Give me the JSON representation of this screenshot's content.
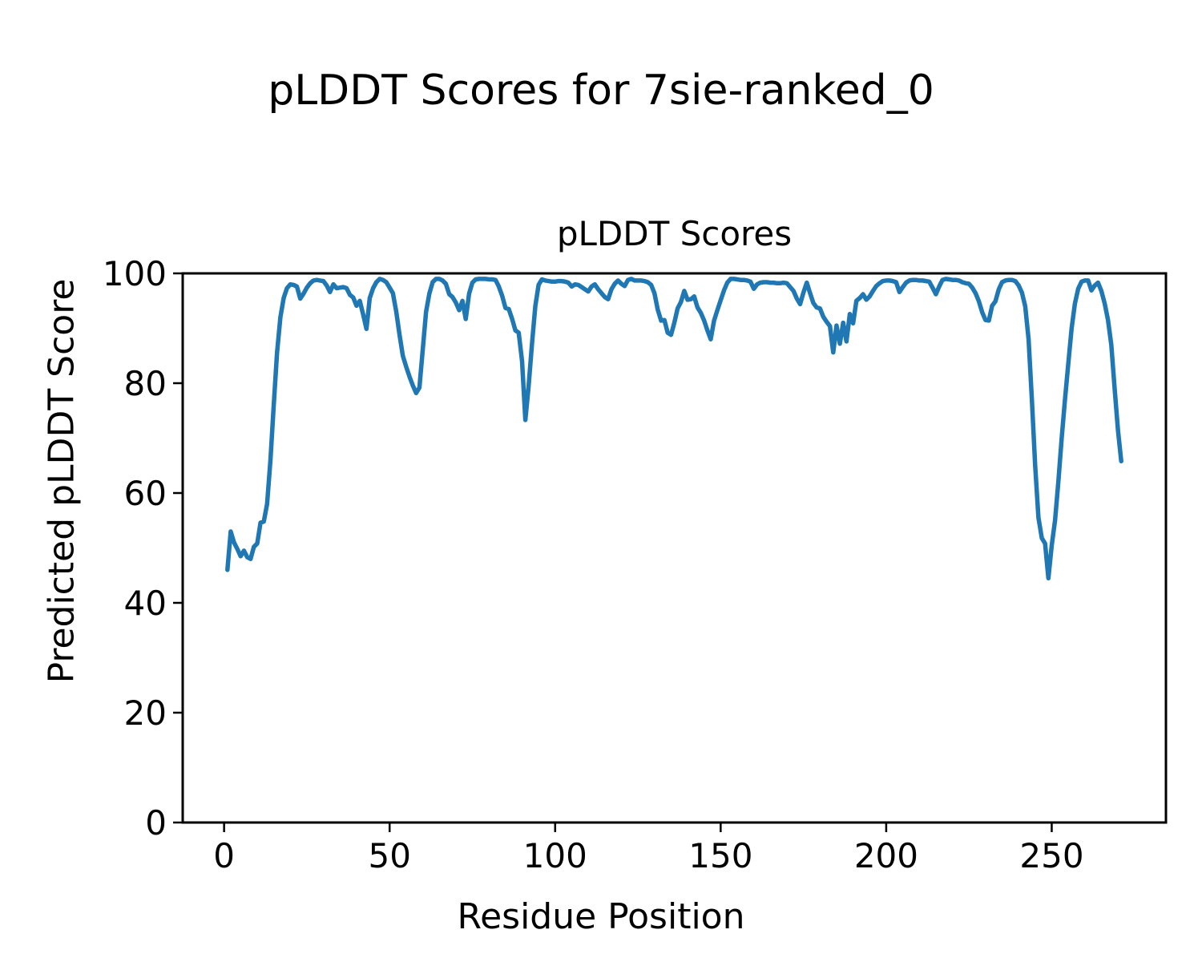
{
  "figure": {
    "suptitle": "pLDDT Scores for 7sie-ranked_0",
    "background_color": "#ffffff",
    "text_color": "#000000"
  },
  "axes": {
    "title": "pLDDT Scores",
    "xlabel": "Residue Position",
    "ylabel": "Predicted pLDDT Score"
  },
  "chart_data": {
    "type": "line",
    "title": "pLDDT Scores",
    "xlabel": "Residue Position",
    "ylabel": "Predicted pLDDT Score",
    "line_color": "#1f77b4",
    "axis_color": "#000000",
    "grid": false,
    "legend": null,
    "xlim": [
      -12.5,
      284.5
    ],
    "ylim": [
      0,
      100
    ],
    "xticks": [
      0,
      50,
      100,
      150,
      200,
      250
    ],
    "yticks": [
      0,
      20,
      40,
      60,
      80,
      100
    ],
    "x_start": 1,
    "x_step": 1,
    "series": [
      {
        "name": "pLDDT",
        "values": [
          46,
          53,
          51,
          49.8,
          48.5,
          49.5,
          48.3,
          48,
          50.2,
          50.8,
          54.6,
          54.8,
          58,
          66,
          76,
          85.5,
          92,
          95.5,
          97.3,
          98,
          97.9,
          97.6,
          95.4,
          96.3,
          97.4,
          98.2,
          98.7,
          98.8,
          98.7,
          98.6,
          97.8,
          96.6,
          98,
          97.3,
          97.4,
          97.5,
          97.3,
          96.1,
          95.6,
          94.1,
          95,
          92.5,
          89.9,
          95.5,
          97.3,
          98.4,
          99,
          98.8,
          98.4,
          97.4,
          96.4,
          93,
          88.8,
          85,
          83,
          81.2,
          79.6,
          78.2,
          79.2,
          86,
          93,
          96.3,
          98.4,
          99,
          99,
          98.7,
          98.1,
          96.2,
          95.7,
          94.7,
          93.3,
          95,
          91.7,
          96.3,
          98.3,
          98.9,
          99,
          99,
          99,
          98.9,
          98.9,
          98.8,
          97.6,
          95.9,
          93.7,
          93.5,
          91.7,
          89.6,
          89.2,
          84,
          73.3,
          79.5,
          87.2,
          94,
          97.9,
          98.9,
          98.7,
          98.6,
          98.5,
          98.5,
          98.6,
          98.6,
          98.5,
          98.3,
          97.6,
          98,
          97.9,
          97.5,
          97.1,
          96.7,
          97.6,
          98,
          97.1,
          96.4,
          95.7,
          95.3,
          97.1,
          98.1,
          98.7,
          98.1,
          97.7,
          98.8,
          99,
          98.7,
          98.7,
          98.7,
          98.6,
          98.4,
          97.9,
          96.4,
          93.4,
          91.4,
          91.5,
          89.2,
          88.8,
          91,
          93.6,
          94.8,
          96.8,
          95.2,
          95.3,
          95.8,
          93.8,
          92.8,
          91.4,
          89.6,
          88,
          91.4,
          93.3,
          95.1,
          96.9,
          98.3,
          99,
          99,
          98.9,
          98.8,
          98.8,
          98.7,
          98.5,
          97.2,
          98,
          98.3,
          98.4,
          98.4,
          98.3,
          98.3,
          98.2,
          98.2,
          98.3,
          98.2,
          97.5,
          96.8,
          95.4,
          94.4,
          96.5,
          98.3,
          96.4,
          94.6,
          93.8,
          93.6,
          92.1,
          91.2,
          90.4,
          85.6,
          90.5,
          87.2,
          91,
          87.6,
          92.6,
          90.9,
          95,
          95.5,
          96.2,
          95.2,
          95.8,
          96.8,
          97.7,
          98.2,
          98.6,
          98.7,
          98.7,
          98.6,
          98.4,
          96.6,
          97.5,
          98.3,
          98.7,
          98.8,
          98.8,
          98.7,
          98.7,
          98.6,
          98.5,
          97.4,
          96.2,
          97.6,
          98.8,
          99,
          98.9,
          98.8,
          98.8,
          98.7,
          98.4,
          98.2,
          98.1,
          97.4,
          96.4,
          94.9,
          92.9,
          91.5,
          91.4,
          94.1,
          94.9,
          97.1,
          98.4,
          98.7,
          98.8,
          98.8,
          98.6,
          97.8,
          96.5,
          94,
          88,
          77,
          65,
          55.5,
          51.8,
          50.8,
          44.5,
          50.5,
          55,
          62,
          70,
          77,
          83.5,
          90,
          94.5,
          97.2,
          98.5,
          98.7,
          98.7,
          96.9,
          97.8,
          98.3,
          96.8,
          94.5,
          91.5,
          87,
          79,
          71.5,
          65.8
        ]
      }
    ]
  }
}
